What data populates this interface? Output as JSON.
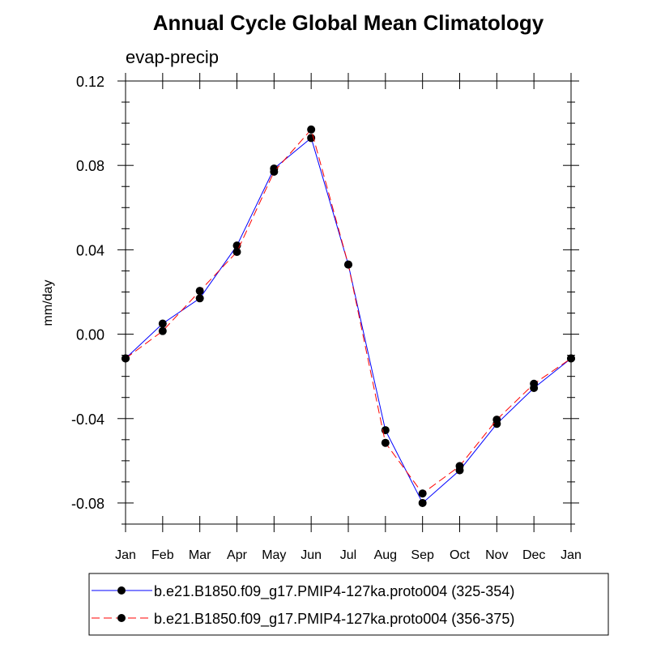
{
  "chart_data": {
    "type": "line",
    "title": "Annual Cycle Global Mean Climatology",
    "subtitle": "evap-precip",
    "xlabel": "",
    "ylabel": "mm/day",
    "categories": [
      "Jan",
      "Feb",
      "Mar",
      "Apr",
      "May",
      "Jun",
      "Jul",
      "Aug",
      "Sep",
      "Oct",
      "Nov",
      "Dec",
      "Jan"
    ],
    "ylim": [
      -0.09,
      0.12
    ],
    "yticks": [
      0.12,
      0.08,
      0.04,
      0.0,
      -0.04,
      -0.08
    ],
    "ytick_labels": [
      "0.12",
      "0.08",
      "0.04",
      "0.00",
      "-0.04",
      "-0.08"
    ],
    "grid": false,
    "legend_position": "bottom",
    "series": [
      {
        "name": "b.e21.B1850.f09_g17.PMIP4-127ka.proto004 (325-354)",
        "color": "#0000ff",
        "dash": "solid",
        "values": [
          -0.0115,
          0.005,
          0.017,
          0.042,
          0.0785,
          0.093,
          0.033,
          -0.0455,
          -0.08,
          -0.0645,
          -0.0425,
          -0.0255,
          -0.0115
        ]
      },
      {
        "name": "b.e21.B1850.f09_g17.PMIP4-127ka.proto004 (356-375)",
        "color": "#ff0000",
        "dash": "dashed",
        "values": [
          -0.0115,
          0.0015,
          0.0205,
          0.039,
          0.077,
          0.097,
          0.033,
          -0.0515,
          -0.0755,
          -0.0625,
          -0.0405,
          -0.0235,
          -0.0115
        ]
      }
    ]
  }
}
